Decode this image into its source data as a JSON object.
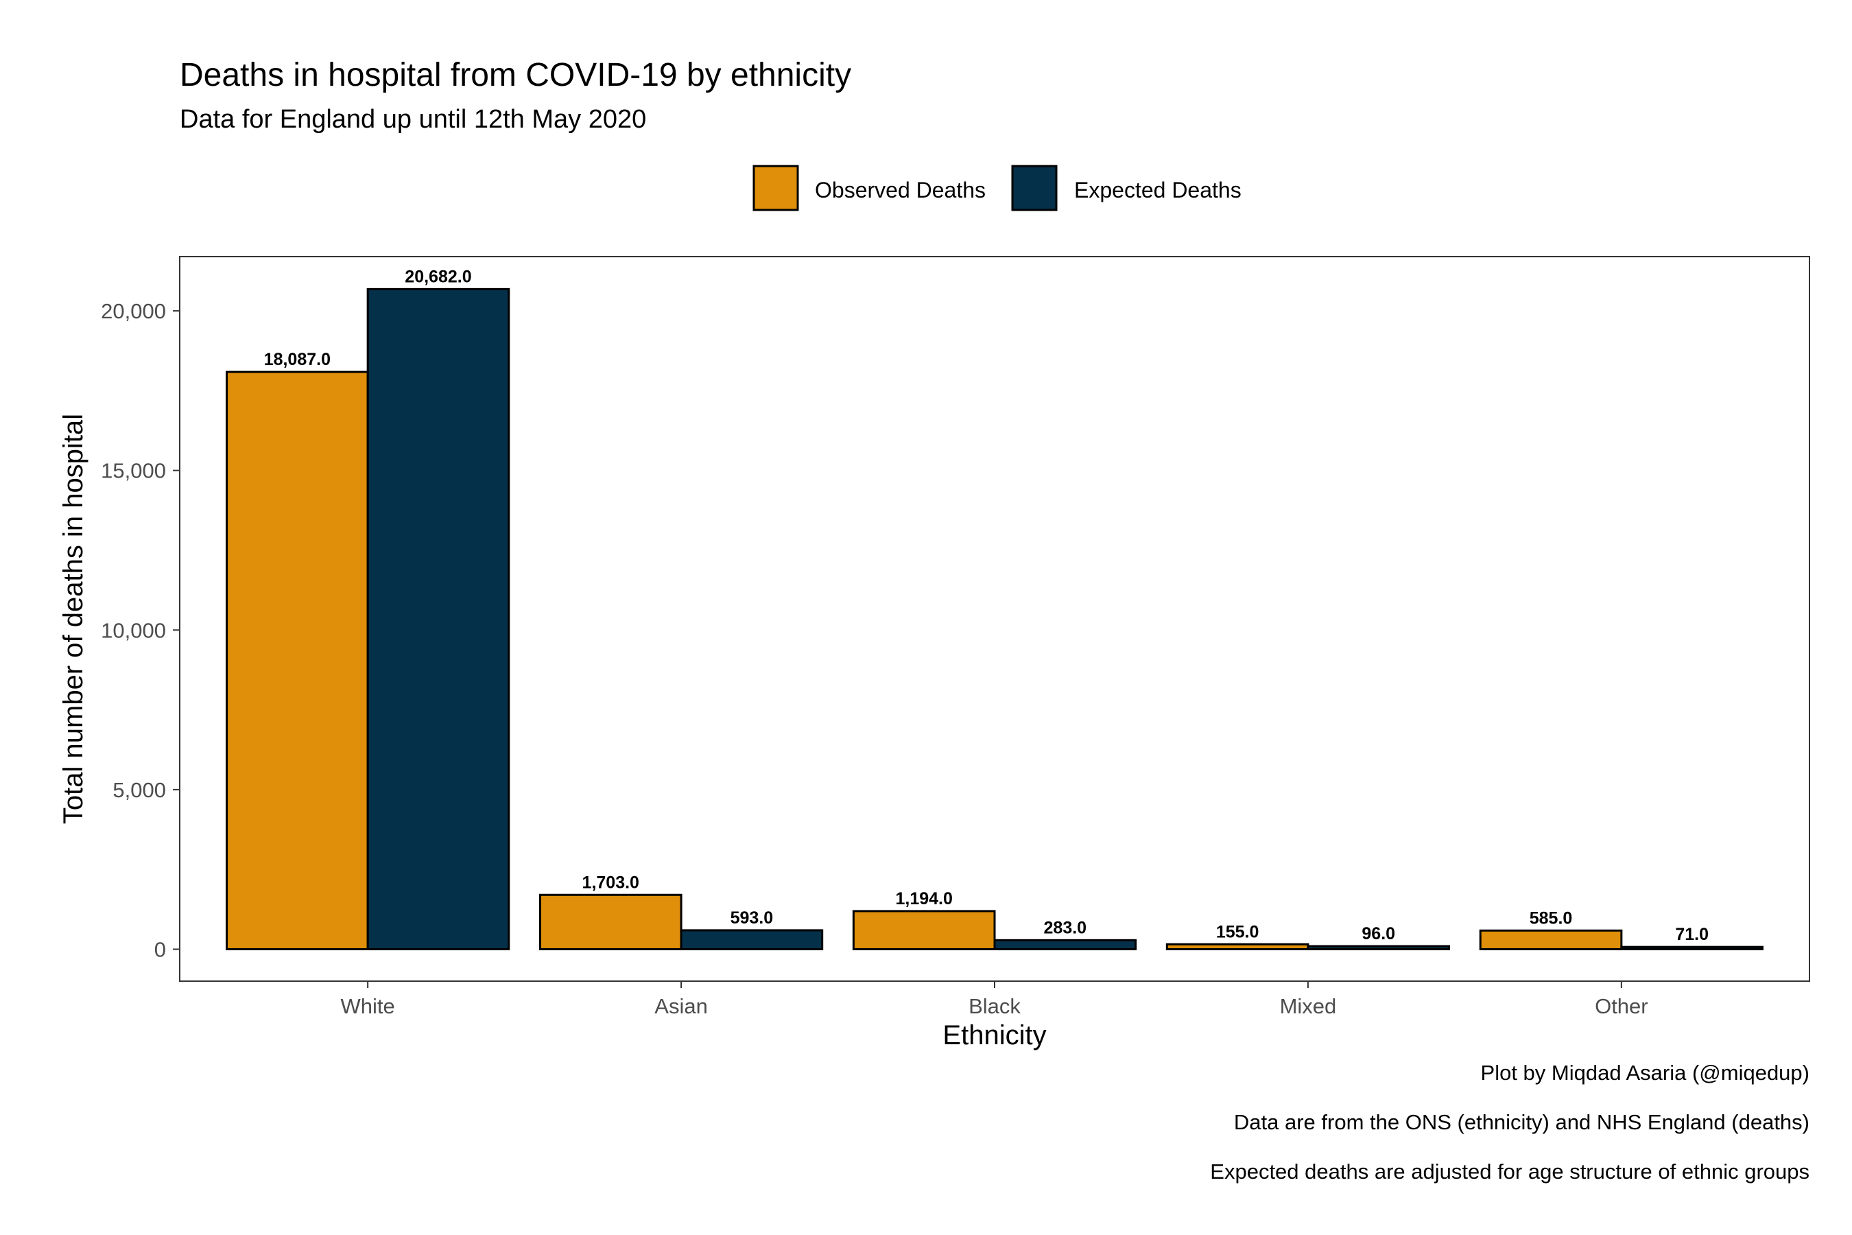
{
  "chart_data": {
    "type": "bar",
    "title": "Deaths in hospital from COVID-19 by ethnicity",
    "subtitle": "Data for England up until 12th May 2020",
    "xlabel": "Ethnicity",
    "ylabel": "Total number of deaths in hospital",
    "categories": [
      "White",
      "Asian",
      "Black",
      "Mixed",
      "Other"
    ],
    "series": [
      {
        "name": "Observed Deaths",
        "color": "#DF8F09",
        "values": [
          18087,
          1703,
          1194,
          155,
          585
        ],
        "labels": [
          "18,087.0",
          "1,703.0",
          "1,194.0",
          "155.0",
          "585.0"
        ]
      },
      {
        "name": "Expected Deaths",
        "color": "#053049",
        "values": [
          20682,
          593,
          283,
          96,
          71
        ],
        "labels": [
          "20,682.0",
          "593.0",
          "283.0",
          "96.0",
          "71.0"
        ]
      }
    ],
    "ylim": [
      -1000,
      21700
    ],
    "yticks": [
      0,
      5000,
      10000,
      15000,
      20000
    ],
    "ytick_labels": [
      "0",
      "5,000",
      "10,000",
      "15,000",
      "20,000"
    ],
    "legend_position": "top",
    "grid": false,
    "captions": [
      "Plot by Miqdad Asaria (@miqedup)",
      "Data are from the ONS (ethnicity) and NHS England (deaths)",
      "Expected deaths are adjusted for age structure of ethnic groups"
    ]
  }
}
